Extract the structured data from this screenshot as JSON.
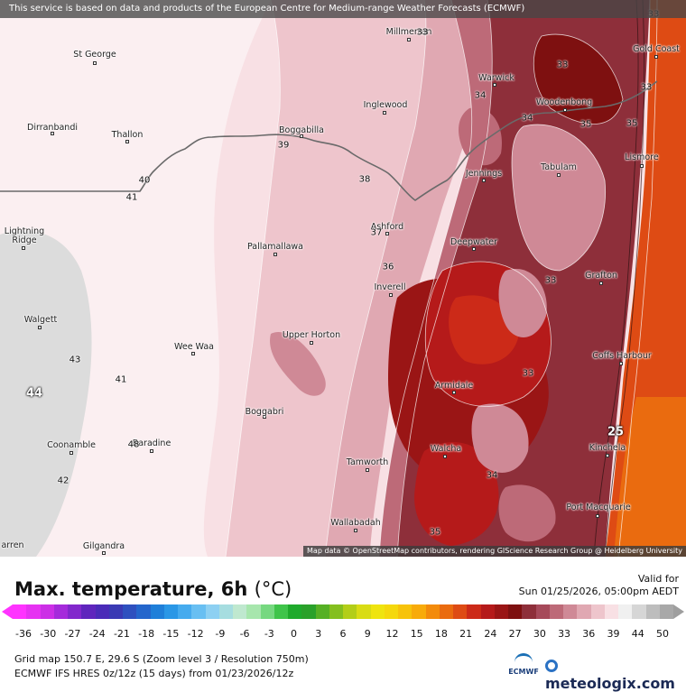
{
  "map": {
    "attribution_top": "This service is based on data and products of the European Centre for Medium-range Weather Forecasts (ECMWF)",
    "attribution_bottom": "Map data © OpenStreetMap contributors, rendering GIScience Research Group @ Heidelberg University",
    "towns": [
      {
        "name": "St George"
      },
      {
        "name": "Millmerran"
      },
      {
        "name": "Gold Coast"
      },
      {
        "name": "Warwick"
      },
      {
        "name": "Woodenbong"
      },
      {
        "name": "Dirranbandi"
      },
      {
        "name": "Thallon"
      },
      {
        "name": "Boggabilla"
      },
      {
        "name": "Inglewood"
      },
      {
        "name": "Lismore"
      },
      {
        "name": "Tabulam"
      },
      {
        "name": "Jennings"
      },
      {
        "name": "Lightning Ridge"
      },
      {
        "name": "Ashford"
      },
      {
        "name": "Deepwater"
      },
      {
        "name": "Pallamallawa"
      },
      {
        "name": "Grafton"
      },
      {
        "name": "Inverell"
      },
      {
        "name": "Walgett"
      },
      {
        "name": "Upper Horton"
      },
      {
        "name": "Wee Waa"
      },
      {
        "name": "Coffs Harbour"
      },
      {
        "name": "Armidale"
      },
      {
        "name": "Boggabri"
      },
      {
        "name": "Coonamble"
      },
      {
        "name": "Baradine"
      },
      {
        "name": "Walcha"
      },
      {
        "name": "Kinchela"
      },
      {
        "name": "Tamworth"
      },
      {
        "name": "Port Macquarie"
      },
      {
        "name": "Wallabadah"
      },
      {
        "name": "Gilgandra"
      },
      {
        "name": "arren"
      }
    ],
    "contour_labels": [
      "33",
      "33",
      "33",
      "34",
      "34",
      "35",
      "35",
      "39",
      "40",
      "41",
      "38",
      "37",
      "36",
      "43",
      "44",
      "41",
      "33",
      "33",
      "25",
      "48",
      "42",
      "34",
      "35",
      "33"
    ]
  },
  "legend": {
    "title": "Max. temperature, 6h",
    "unit": "(°C)",
    "valid_label": "Valid for",
    "valid_time": "Sun 01/25/2026, 05:00pm AEDT",
    "ticks": [
      "-36",
      "-30",
      "-27",
      "-24",
      "-21",
      "-18",
      "-15",
      "-12",
      "-9",
      "-6",
      "-3",
      "0",
      "3",
      "6",
      "9",
      "12",
      "15",
      "18",
      "21",
      "24",
      "27",
      "30",
      "33",
      "36",
      "39",
      "44",
      "50"
    ],
    "colors": [
      "#ff33ff",
      "#e632f2",
      "#cc2fe6",
      "#a52bdb",
      "#8228cc",
      "#5f25bd",
      "#4a2bb8",
      "#3a3ab4",
      "#2e50bf",
      "#2466cc",
      "#1f7fd9",
      "#2a97e6",
      "#46abee",
      "#68bff2",
      "#8dd0f2",
      "#a6dde0",
      "#bfe8cf",
      "#a7e6ad",
      "#76d880",
      "#3fc44a",
      "#1faa2c",
      "#2aa12a",
      "#56b024",
      "#84bf1e",
      "#b3ce18",
      "#d9dc14",
      "#efe40f",
      "#f5d80c",
      "#f7c30b",
      "#f8ab0a",
      "#f38b0b",
      "#ea6b0f",
      "#de4b14",
      "#cc2a18",
      "#b51a1a",
      "#9a1515",
      "#7e1010",
      "#8e2f3a",
      "#a64a5a",
      "#bd6a78",
      "#cf8996",
      "#e0a8b2",
      "#eec5cc",
      "#f8e0e4",
      "#f0f0f0",
      "#d6d6d6",
      "#bdbdbd",
      "#a8a8a8"
    ],
    "grid_info": "Grid map 150.7 E, 29.6 S (Zoom level 3 / Resolution 750m)",
    "model_info": "ECMWF IFS HRES 0z/12z (15 days) from 01/23/2026/12z",
    "ecmwf_label": "ECMWF",
    "brand": "meteologix.com"
  }
}
